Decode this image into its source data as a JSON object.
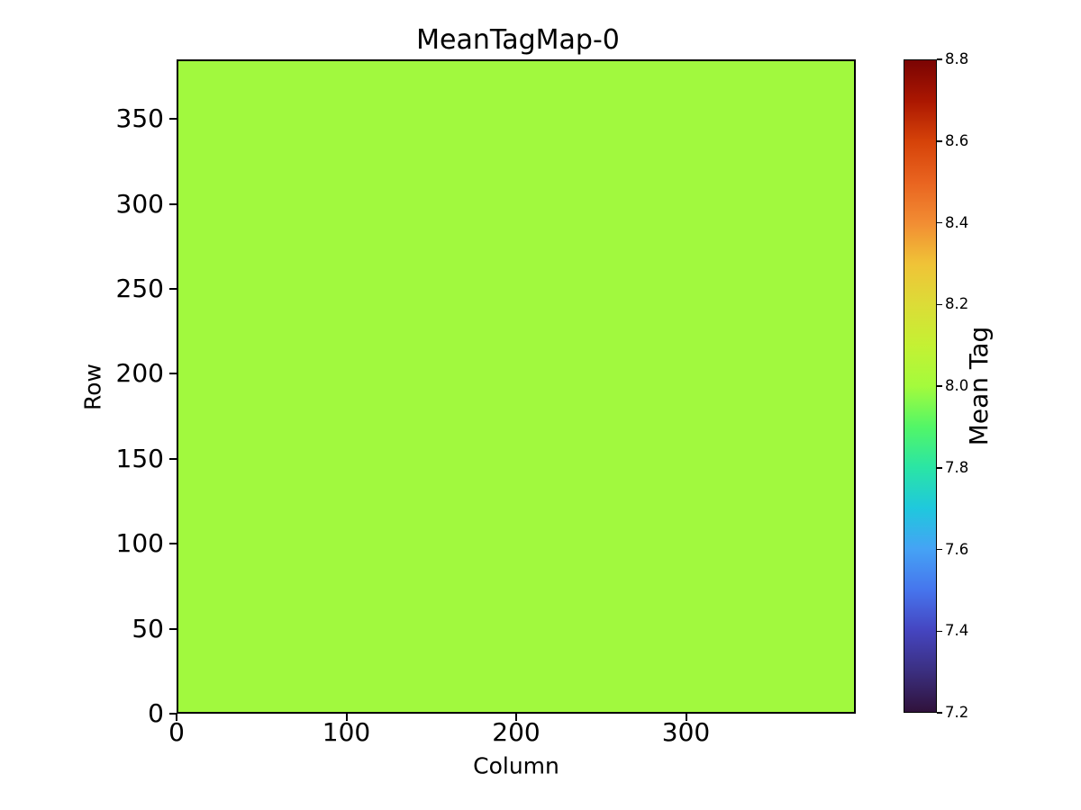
{
  "colors": {
    "background": "#ffffff",
    "text": "#000000",
    "axis": "#000000",
    "heatmap_fill": "#a1f93e"
  },
  "chart_data": {
    "type": "heatmap",
    "title": "MeanTagMap-0",
    "xlabel": "Column",
    "ylabel": "Row",
    "x_range": [
      0,
      400
    ],
    "y_range": [
      0,
      385
    ],
    "x_ticks": [
      0,
      100,
      200,
      300
    ],
    "x_tick_labels": [
      "0",
      "100",
      "200",
      "300"
    ],
    "y_ticks": [
      0,
      50,
      100,
      150,
      200,
      250,
      300,
      350
    ],
    "y_tick_labels": [
      "0",
      "50",
      "100",
      "150",
      "200",
      "250",
      "300",
      "350"
    ],
    "grid": false,
    "legend": false,
    "uniform_value": 8.0,
    "description": "Entire heatmap is a single uniform value of 8.0 (yellow-green in the turbo colormap).",
    "colorbar": {
      "label": "Mean Tag",
      "min": 7.2,
      "max": 8.8,
      "ticks": [
        7.2,
        7.4,
        7.6,
        7.8,
        8.0,
        8.2,
        8.4,
        8.6,
        8.8
      ],
      "tick_labels": [
        "7.2",
        "7.4",
        "7.6",
        "7.8",
        "8.0",
        "8.2",
        "8.4",
        "8.6",
        "8.8"
      ],
      "colormap": "turbo",
      "gradient_stops": [
        {
          "pos": 0.0,
          "color": "#30123b"
        },
        {
          "pos": 0.0625,
          "color": "#3b2f80"
        },
        {
          "pos": 0.125,
          "color": "#4545c0"
        },
        {
          "pos": 0.1875,
          "color": "#4675ed"
        },
        {
          "pos": 0.25,
          "color": "#45a3f5"
        },
        {
          "pos": 0.3125,
          "color": "#1fc8dd"
        },
        {
          "pos": 0.375,
          "color": "#2ae5a5"
        },
        {
          "pos": 0.4375,
          "color": "#52f667"
        },
        {
          "pos": 0.5,
          "color": "#a4fb3c"
        },
        {
          "pos": 0.5625,
          "color": "#c4f133"
        },
        {
          "pos": 0.625,
          "color": "#dcdc37"
        },
        {
          "pos": 0.6875,
          "color": "#f0c337"
        },
        {
          "pos": 0.75,
          "color": "#f28d33"
        },
        {
          "pos": 0.8125,
          "color": "#e96420"
        },
        {
          "pos": 0.875,
          "color": "#d64309"
        },
        {
          "pos": 0.9375,
          "color": "#ab1701"
        },
        {
          "pos": 1.0,
          "color": "#7a0403"
        }
      ]
    }
  }
}
